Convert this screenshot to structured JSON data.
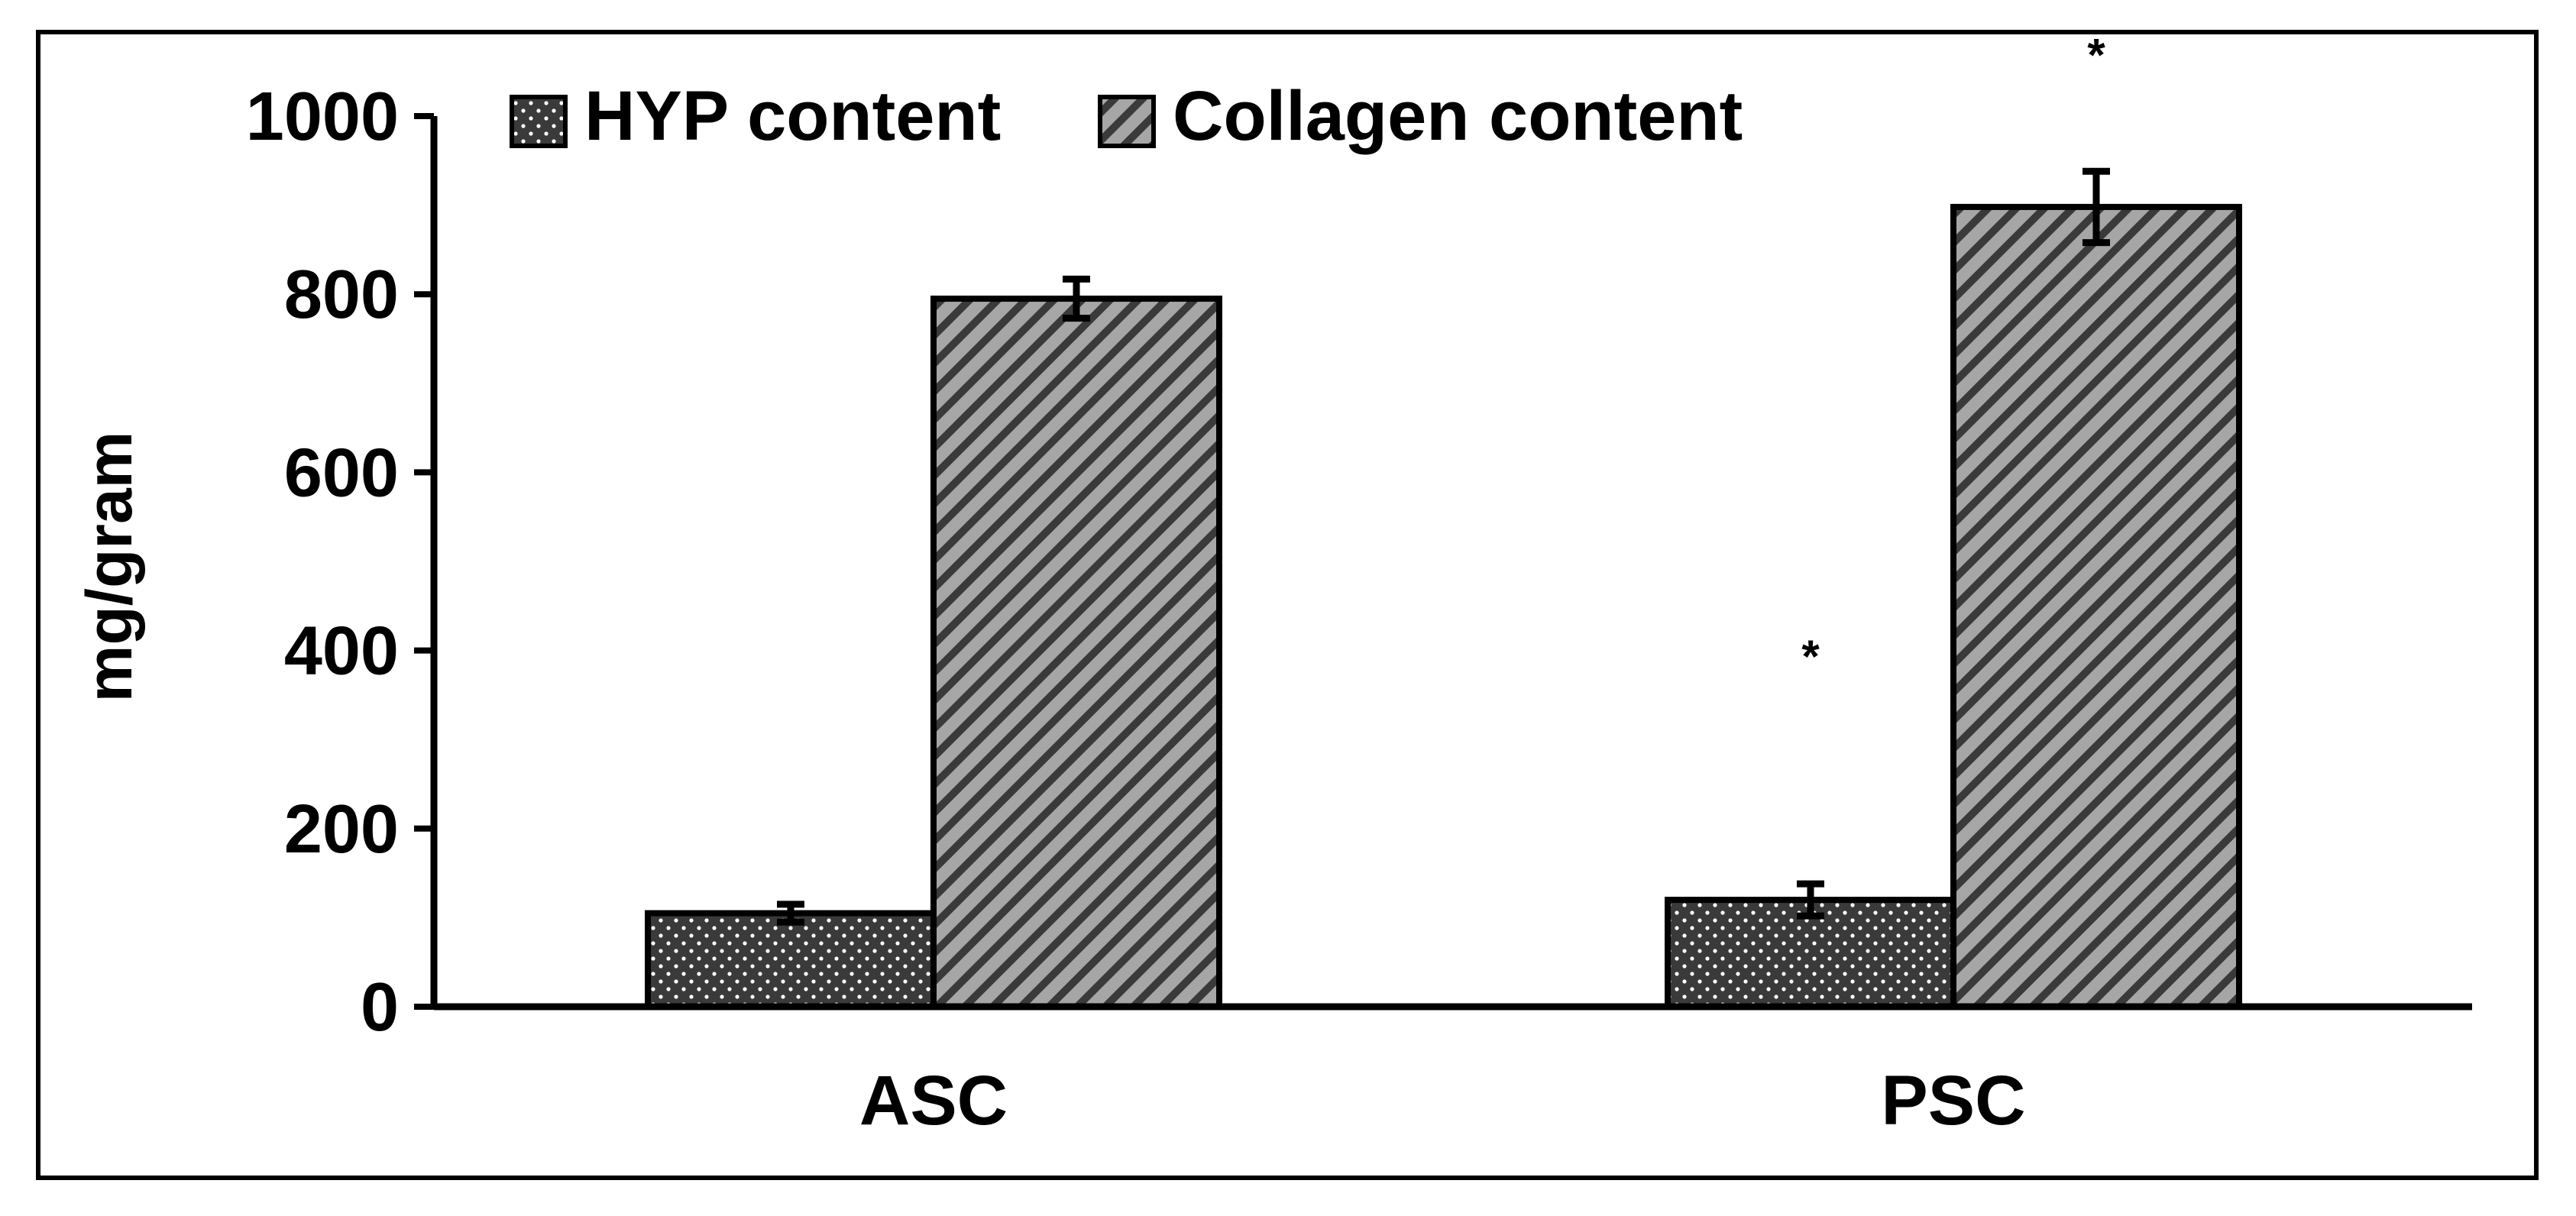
{
  "chart_data": {
    "type": "bar",
    "title": "",
    "xlabel": "",
    "ylabel": "mg/gram",
    "categories": [
      "ASC",
      "PSC"
    ],
    "ylim": [
      0,
      1000
    ],
    "yticks": [
      0,
      200,
      400,
      600,
      800,
      1000
    ],
    "grid": false,
    "legend_position": "top",
    "series": [
      {
        "name": "HYP content",
        "pattern": "dots",
        "color": "#3a3a3a",
        "values": [
          105,
          120
        ],
        "errors": [
          10,
          18
        ]
      },
      {
        "name": "Collagen content",
        "pattern": "diagonal-stripes",
        "color": "#a6a6a6",
        "values": [
          795,
          898
        ],
        "errors": [
          22,
          40
        ]
      }
    ],
    "annotations": [
      {
        "text": "*",
        "category": "PSC",
        "series": "HYP content",
        "y": 405
      },
      {
        "text": "*",
        "category": "PSC",
        "series": "Collagen content",
        "y": 1080
      }
    ]
  }
}
